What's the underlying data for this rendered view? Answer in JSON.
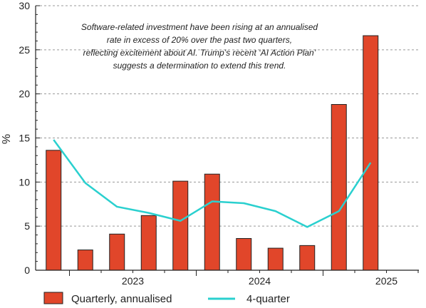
{
  "chart_data": {
    "type": "bar",
    "title": "",
    "ylabel": "%",
    "ylim": [
      0,
      30
    ],
    "yticks": [
      0,
      5,
      10,
      15,
      20,
      25,
      30
    ],
    "grid": true,
    "x_year_labels": [
      "2023",
      "2024",
      "2025"
    ],
    "series": [
      {
        "name": "Quarterly, annualised",
        "type": "bar",
        "color": "#e1462a",
        "values": [
          13.6,
          2.3,
          4.1,
          6.2,
          10.1,
          10.9,
          3.6,
          2.5,
          2.8,
          18.8,
          26.6
        ]
      },
      {
        "name": "4-quarter",
        "type": "line",
        "color": "#2ad0cf",
        "values": [
          14.8,
          9.9,
          7.2,
          6.5,
          5.6,
          7.8,
          7.6,
          6.7,
          4.9,
          6.7,
          12.2
        ]
      }
    ],
    "annotation": [
      "Software-related investment have been rising at an annualised",
      "rate in excess of 20% over the past two quarters,",
      "reflecting excitement about AI. Trump’s recent ‘AI Action Plan’",
      "suggests a determination to extend this trend."
    ],
    "legend_position": "bottom"
  }
}
